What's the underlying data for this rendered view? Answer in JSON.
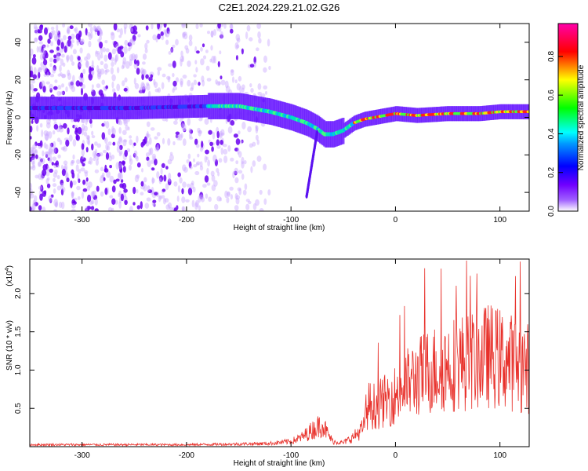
{
  "page": {
    "title": "C2E1.2024.229.21.02.G26"
  },
  "chart_data": [
    {
      "type": "heatmap",
      "title": "C2E1.2024.229.21.02.G26",
      "xlabel": "Height of straight line (km)",
      "ylabel": "Frequency (Hz)",
      "xlim": [
        -350,
        128
      ],
      "ylim": [
        -50,
        50
      ],
      "x_ticks": [
        -300,
        -200,
        -100,
        0,
        100
      ],
      "x_tick_labels": [
        "-300",
        "-200",
        "-100",
        "0",
        "100"
      ],
      "y_ticks": [
        -40,
        -20,
        0,
        20,
        40
      ],
      "y_tick_labels": [
        "-40",
        "-20",
        "0",
        "20",
        "40"
      ],
      "colorbar": {
        "label": "Normalized spectral amplitude",
        "range": [
          0,
          0.97
        ],
        "ticks": [
          0.0,
          0.2,
          0.4,
          0.6,
          0.8
        ],
        "tick_labels": [
          "0.0",
          "0.2",
          "0.4",
          "0.6",
          "0.8"
        ],
        "colormap": [
          "#ffffff",
          "#7a00ff",
          "#0000ff",
          "#00ffff",
          "#00ff00",
          "#ffff00",
          "#ff0000",
          "#ff00aa"
        ]
      },
      "ridge": {
        "description_points_x": [
          -350,
          -250,
          -180,
          -150,
          -120,
          -100,
          -85,
          -75,
          -68,
          -60,
          -50,
          -40,
          -30,
          -10,
          0,
          20,
          50,
          80,
          100,
          128
        ],
        "description_points_y": [
          5,
          5,
          6,
          6,
          3,
          0,
          -3,
          -6,
          -9,
          -9,
          -7,
          -3,
          -1,
          1,
          2,
          1,
          2,
          2,
          3,
          3
        ]
      },
      "grid": false
    },
    {
      "type": "line",
      "xlabel": "Height of straight line (km)",
      "ylabel": "SNR (10 * v/v)",
      "y_multiplier_label": "(x10",
      "y_multiplier_exp": "4",
      "xlim": [
        -350,
        128
      ],
      "ylim": [
        0,
        2.45
      ],
      "x_ticks": [
        -300,
        -200,
        -100,
        0,
        100
      ],
      "x_tick_labels": [
        "-300",
        "-200",
        "-100",
        "0",
        "100"
      ],
      "y_ticks": [
        0.5,
        1.0,
        1.5,
        2.0
      ],
      "y_tick_labels": [
        "0.5",
        "1.0",
        "1.5",
        "2.0"
      ],
      "series": [
        {
          "color": "#e8302a",
          "envelope_x": [
            -350,
            -300,
            -250,
            -200,
            -150,
            -120,
            -100,
            -90,
            -80,
            -75,
            -70,
            -65,
            -60,
            -50,
            -40,
            -30,
            -28,
            -25,
            -20,
            -10,
            0,
            10,
            20,
            30,
            40,
            50,
            60,
            70,
            80,
            90,
            100,
            110,
            120,
            128
          ],
          "envelope_y": [
            0.03,
            0.03,
            0.03,
            0.03,
            0.04,
            0.05,
            0.08,
            0.14,
            0.25,
            0.3,
            0.35,
            0.2,
            0.08,
            0.06,
            0.15,
            0.3,
            0.55,
            0.65,
            0.62,
            0.7,
            0.8,
            0.95,
            1.05,
            1.15,
            1.2,
            1.25,
            1.3,
            1.3,
            1.35,
            1.4,
            1.35,
            1.3,
            1.25,
            1.2
          ]
        }
      ],
      "grid": false
    }
  ]
}
